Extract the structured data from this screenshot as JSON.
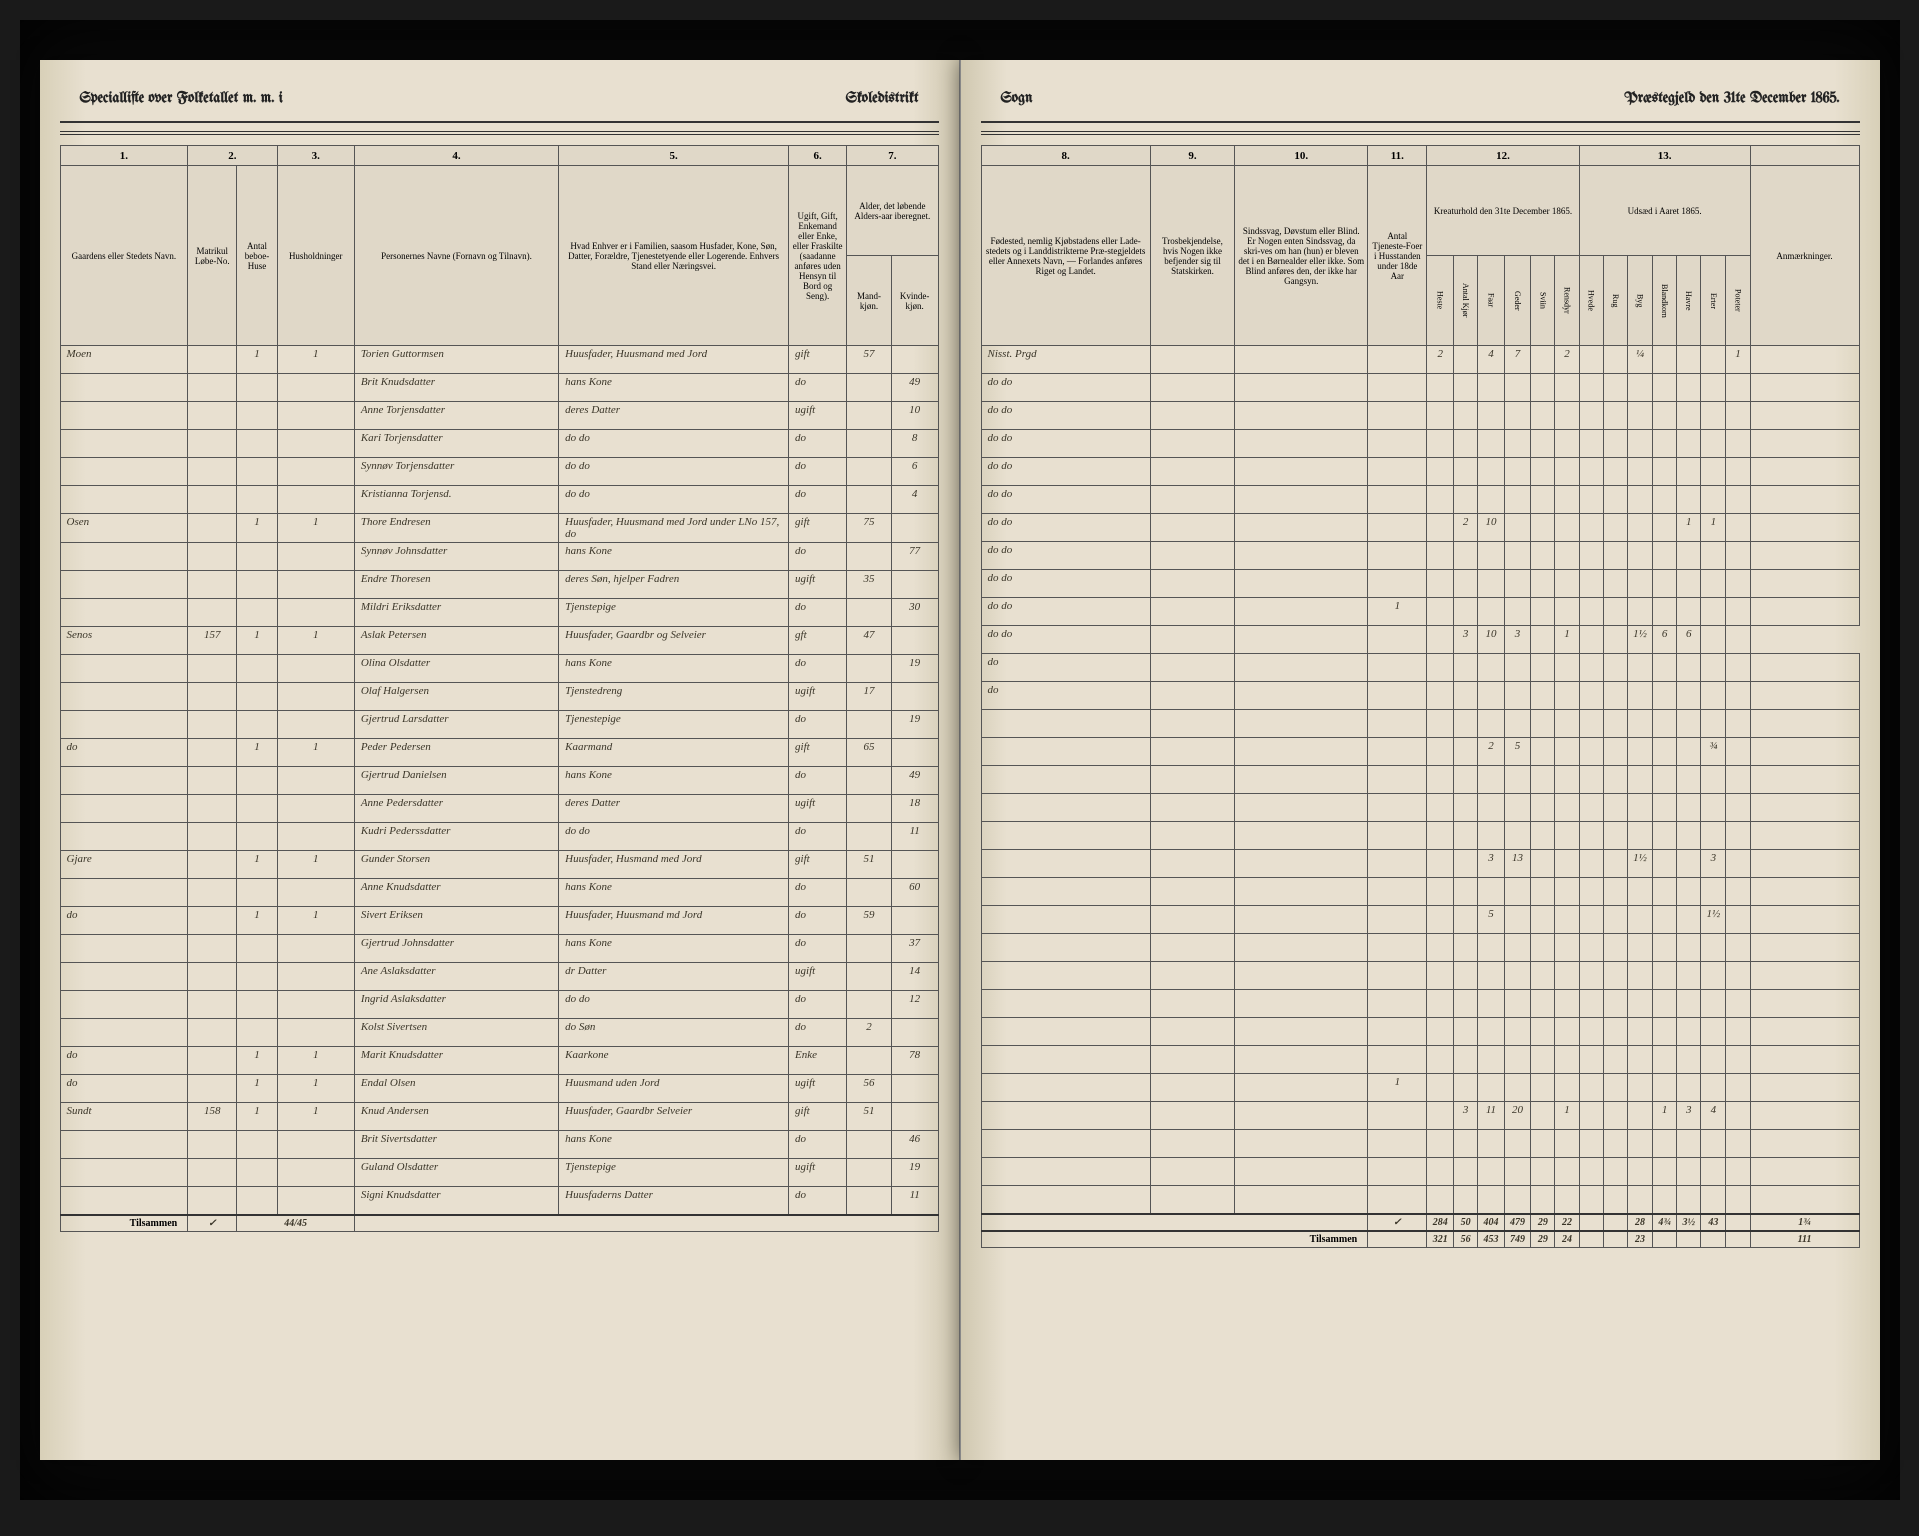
{
  "header_left": {
    "title1": "Speciallifte over Folketallet m. m. i",
    "title2": "Skoledistrikt"
  },
  "header_right": {
    "title1": "Sogn",
    "title2": "Præstegjeld den 31te December 1865."
  },
  "columns_left": {
    "c1": "1.",
    "c2": "2.",
    "c3": "3.",
    "c4": "4.",
    "c5": "5.",
    "c6": "6.",
    "c7": "7.",
    "h1": "Gaardens eller Stedets Navn.",
    "h2a": "Matrikul Løbe-No.",
    "h2b": "Antal beboe-Huse",
    "h3": "Husholdninger",
    "h4": "Personernes Navne (Fornavn og Tilnavn).",
    "h5": "Hvad Enhver er i Familien, saasom Husfader, Kone, Søn, Datter, Forældre, Tjenestetyende eller Logerende. Enhvers Stand eller Næringsvei.",
    "h6": "Ugift, Gift, Enkemand eller Enke, eller Fraskilte (saadanne anføres uden Hensyn til Bord og Seng).",
    "h7a": "Mand-kjøn.",
    "h7b": "Kvinde-kjøn.",
    "h7": "Alder, det løbende Alders-aar iberegnet."
  },
  "columns_right": {
    "c8": "8.",
    "c9": "9.",
    "c10": "10.",
    "c11": "11.",
    "c12": "12.",
    "c13": "13.",
    "h8": "Fødested, nemlig Kjøbstadens eller Lade-stedets og i Landdistrikterne Præ-stegjeldets eller Annexets Navn, — Forlandes anføres Riget og Landet.",
    "h9": "Trosbekjendelse, hvis Nogen ikke befjender sig til Statskirken.",
    "h10": "Sindssvag, Døvstum eller Blind. Er Nogen enten Sindssvag, da skri-ves om han (hun) er bleven det i en Børnealder eller ikke. Som Blind anføres den, der ikke har Gangsyn.",
    "h11": "Antal Tjeneste-Foer i Husstanden under 18de Aar",
    "h12": "Kreaturhold den 31te December 1865.",
    "h13": "Udsæd i Aaret 1865.",
    "h14": "Anmærkninger.",
    "sub12": [
      "Heste",
      "Antal Kjør",
      "Faar",
      "Geder",
      "Sviin",
      "Rensdyr"
    ],
    "sub13": [
      "Hvede",
      "Rug",
      "Byg",
      "Blandkorn",
      "Havre",
      "Erter",
      "Poteter"
    ]
  },
  "rows": [
    {
      "place": "Moen",
      "lnr": "",
      "hus": "1",
      "hh": "1",
      "name": "Torien Guttormsen",
      "role": "Huusfader, Huusmand med Jord",
      "status": "gift",
      "m": "57",
      "k": "",
      "birth": "Nisst. Prgd",
      "c12": [
        "2",
        "",
        "4",
        "7",
        "",
        "2"
      ],
      "c13": [
        "",
        "",
        "¼",
        "",
        "",
        "",
        "1"
      ]
    },
    {
      "place": "",
      "lnr": "",
      "hus": "",
      "hh": "",
      "name": "Brit Knudsdatter",
      "role": "hans Kone",
      "status": "do",
      "m": "",
      "k": "49",
      "birth": "do do"
    },
    {
      "place": "",
      "lnr": "",
      "hus": "",
      "hh": "",
      "name": "Anne Torjensdatter",
      "role": "deres Datter",
      "status": "ugift",
      "m": "",
      "k": "10",
      "birth": "do do"
    },
    {
      "place": "",
      "lnr": "",
      "hus": "",
      "hh": "",
      "name": "Kari Torjensdatter",
      "role": "do do",
      "status": "do",
      "m": "",
      "k": "8",
      "birth": "do do"
    },
    {
      "place": "",
      "lnr": "",
      "hus": "",
      "hh": "",
      "name": "Synnøv Torjensdatter",
      "role": "do do",
      "status": "do",
      "m": "",
      "k": "6",
      "birth": "do do"
    },
    {
      "place": "",
      "lnr": "",
      "hus": "",
      "hh": "",
      "name": "Kristianna Torjensd.",
      "role": "do do",
      "status": "do",
      "m": "",
      "k": "4",
      "birth": "do do"
    },
    {
      "place": "Osen",
      "lnr": "",
      "hus": "1",
      "hh": "1",
      "name": "Thore Endresen",
      "role": "Huusfader, Huusmand med Jord under LNo 157, do",
      "status": "gift",
      "m": "75",
      "k": "",
      "birth": "do do",
      "c12": [
        "",
        "2",
        "10",
        "",
        "",
        ""
      ],
      "c13": [
        "",
        "",
        "",
        "",
        "1",
        "1",
        ""
      ]
    },
    {
      "place": "",
      "lnr": "",
      "hus": "",
      "hh": "",
      "name": "Synnøv Johnsdatter",
      "role": "hans Kone",
      "status": "do",
      "m": "",
      "k": "77",
      "birth": "do do"
    },
    {
      "place": "",
      "lnr": "",
      "hus": "",
      "hh": "",
      "name": "Endre Thoresen",
      "role": "deres Søn, hjelper Fadren",
      "status": "ugift",
      "m": "35",
      "k": "",
      "birth": "do do"
    },
    {
      "place": "",
      "lnr": "",
      "hus": "",
      "hh": "",
      "name": "Mildri Eriksdatter",
      "role": "Tjenstepige",
      "status": "do",
      "m": "",
      "k": "30",
      "birth": "do do",
      "c11": "1"
    },
    {
      "place": "Senos",
      "lnr": "157",
      "hus": "1",
      "hh": "1",
      "name": "Aslak Petersen",
      "role": "Huusfader, Gaardbr og Selveier",
      "status": "gft",
      "m": "47",
      "k": "",
      "birth": "do do",
      "c12": [
        "",
        "3",
        "10",
        "3",
        "",
        "1"
      ],
      "c13": [
        "",
        "",
        "1½",
        "6",
        "6",
        ""
      ]
    },
    {
      "place": "",
      "lnr": "",
      "hus": "",
      "hh": "",
      "name": "Olina Olsdatter",
      "role": "hans Kone",
      "status": "do",
      "m": "",
      "k": "19",
      "birth": "do"
    },
    {
      "place": "",
      "lnr": "",
      "hus": "",
      "hh": "",
      "name": "Olaf Halgersen",
      "role": "Tjenstedreng",
      "status": "ugift",
      "m": "17",
      "k": "",
      "birth": "do"
    },
    {
      "place": "",
      "lnr": "",
      "hus": "",
      "hh": "",
      "name": "Gjertrud Larsdatter",
      "role": "Tjenestepige",
      "status": "do",
      "m": "",
      "k": "19",
      "birth": ""
    },
    {
      "place": "do",
      "lnr": "",
      "hus": "1",
      "hh": "1",
      "name": "Peder Pedersen",
      "role": "Kaarmand",
      "status": "gift",
      "m": "65",
      "k": "",
      "birth": "",
      "c12": [
        "",
        "",
        "2",
        "5",
        "",
        ""
      ],
      "c13": [
        "",
        "",
        "",
        "",
        "",
        "¾",
        ""
      ]
    },
    {
      "place": "",
      "lnr": "",
      "hus": "",
      "hh": "",
      "name": "Gjertrud Danielsen",
      "role": "hans Kone",
      "status": "do",
      "m": "",
      "k": "49",
      "birth": ""
    },
    {
      "place": "",
      "lnr": "",
      "hus": "",
      "hh": "",
      "name": "Anne Pedersdatter",
      "role": "deres Datter",
      "status": "ugift",
      "m": "",
      "k": "18",
      "birth": ""
    },
    {
      "place": "",
      "lnr": "",
      "hus": "",
      "hh": "",
      "name": "Kudri Pederssdatter",
      "role": "do do",
      "status": "do",
      "m": "",
      "k": "11",
      "birth": ""
    },
    {
      "place": "Gjare",
      "lnr": "",
      "hus": "1",
      "hh": "1",
      "name": "Gunder Storsen",
      "role": "Huusfader, Husmand med Jord",
      "status": "gift",
      "m": "51",
      "k": "",
      "birth": "",
      "c12": [
        "",
        "",
        "3",
        "13",
        "",
        ""
      ],
      "c13": [
        "",
        "",
        "1½",
        "",
        "",
        "3",
        ""
      ]
    },
    {
      "place": "",
      "lnr": "",
      "hus": "",
      "hh": "",
      "name": "Anne Knudsdatter",
      "role": "hans Kone",
      "status": "do",
      "m": "",
      "k": "60",
      "birth": ""
    },
    {
      "place": "do",
      "lnr": "",
      "hus": "1",
      "hh": "1",
      "name": "Sivert Eriksen",
      "role": "Huusfader, Huusmand md Jord",
      "status": "do",
      "m": "59",
      "k": "",
      "birth": "",
      "c12": [
        "",
        "",
        "5",
        "",
        "",
        ""
      ],
      "c13": [
        "",
        "",
        "",
        "",
        "",
        "1½",
        ""
      ]
    },
    {
      "place": "",
      "lnr": "",
      "hus": "",
      "hh": "",
      "name": "Gjertrud Johnsdatter",
      "role": "hans Kone",
      "status": "do",
      "m": "",
      "k": "37",
      "birth": ""
    },
    {
      "place": "",
      "lnr": "",
      "hus": "",
      "hh": "",
      "name": "Ane Aslaksdatter",
      "role": "dr Datter",
      "status": "ugift",
      "m": "",
      "k": "14",
      "birth": ""
    },
    {
      "place": "",
      "lnr": "",
      "hus": "",
      "hh": "",
      "name": "Ingrid Aslaksdatter",
      "role": "do do",
      "status": "do",
      "m": "",
      "k": "12",
      "birth": ""
    },
    {
      "place": "",
      "lnr": "",
      "hus": "",
      "hh": "",
      "name": "Kolst Sivertsen",
      "role": "do Søn",
      "status": "do",
      "m": "2",
      "k": "",
      "birth": ""
    },
    {
      "place": "do",
      "lnr": "",
      "hus": "1",
      "hh": "1",
      "name": "Marit Knudsdatter",
      "role": "Kaarkone",
      "status": "Enke",
      "m": "",
      "k": "78",
      "birth": ""
    },
    {
      "place": "do",
      "lnr": "",
      "hus": "1",
      "hh": "1",
      "name": "Endal Olsen",
      "role": "Huusmand uden Jord",
      "status": "ugift",
      "m": "56",
      "k": "",
      "birth": "",
      "c11": "1"
    },
    {
      "place": "Sundt",
      "lnr": "158",
      "hus": "1",
      "hh": "1",
      "name": "Knud Andersen",
      "role": "Huusfader, Gaardbr Selveier",
      "status": "gift",
      "m": "51",
      "k": "",
      "birth": "",
      "c12": [
        "",
        "3",
        "11",
        "20",
        "",
        "1"
      ],
      "c13": [
        "",
        "",
        "",
        "1",
        "3",
        "4",
        ""
      ]
    },
    {
      "place": "",
      "lnr": "",
      "hus": "",
      "hh": "",
      "name": "Brit Sivertsdatter",
      "role": "hans Kone",
      "status": "do",
      "m": "",
      "k": "46",
      "birth": ""
    },
    {
      "place": "",
      "lnr": "",
      "hus": "",
      "hh": "",
      "name": "Guland Olsdatter",
      "role": "Tjenstepige",
      "status": "ugift",
      "m": "",
      "k": "19",
      "birth": ""
    },
    {
      "place": "",
      "lnr": "",
      "hus": "",
      "hh": "",
      "name": "Signi Knudsdatter",
      "role": "Huusfaderns Datter",
      "status": "do",
      "m": "",
      "k": "11",
      "birth": ""
    }
  ],
  "footer": {
    "label": "Tilsammen",
    "label2": "Tilsammen",
    "check": "✓",
    "lnr_sum": "44/45",
    "totals_r1": [
      "284",
      "50",
      "404",
      "479",
      "29",
      "22",
      "",
      "",
      "28",
      "4¾",
      "3½",
      "43",
      "",
      "1¾"
    ],
    "totals_r2": [
      "321",
      "56",
      "453",
      "749",
      "29",
      "24",
      "",
      "",
      "23",
      "",
      "",
      "",
      "",
      "111"
    ]
  },
  "colors": {
    "paper": "#e8e0d0",
    "ink": "#333333",
    "script": "#3a3528",
    "dark_bg": "#1a1a1a"
  }
}
